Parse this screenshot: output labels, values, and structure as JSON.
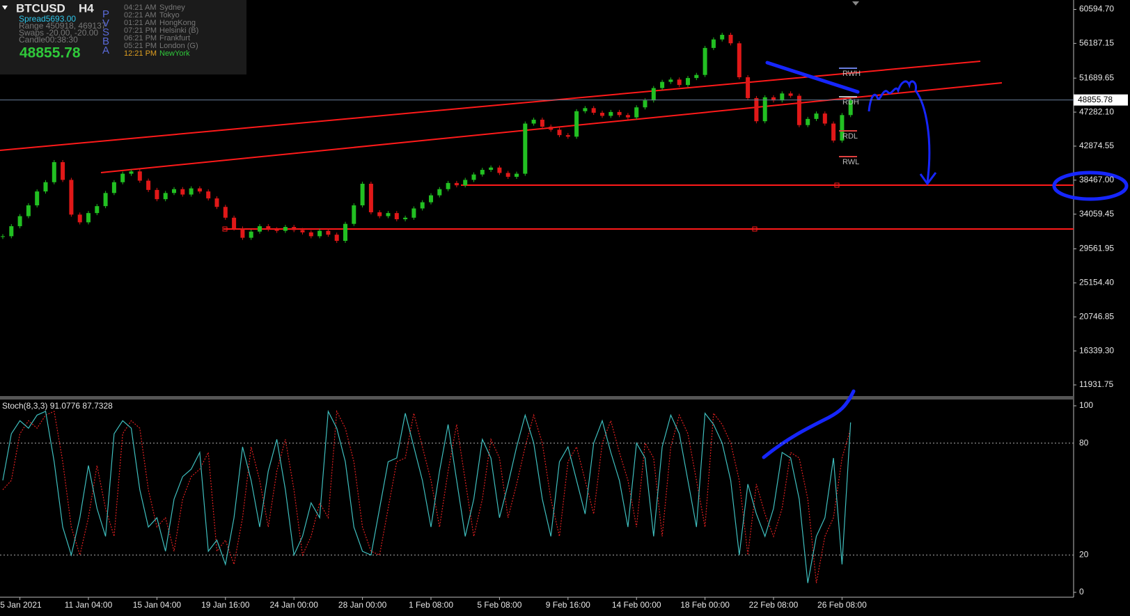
{
  "chart_data": {
    "type": "candlestick",
    "symbol": "BTCUSD",
    "timeframe": "H4",
    "info_lines": [
      "Spread5693.00",
      "Range 450918, 469137",
      "Swaps -20.00, -20.00",
      "Candle00:38:30"
    ],
    "side_letters": [
      "P",
      "V",
      "S",
      "B",
      "A"
    ],
    "clocks": [
      {
        "time": "04:21 AM",
        "city": "Sydney"
      },
      {
        "time": "02:21 AM",
        "city": "Tokyo"
      },
      {
        "time": "01:21 AM",
        "city": "HongKong"
      },
      {
        "time": "07:21 PM",
        "city": "Helsinki  (B)"
      },
      {
        "time": "06:21 PM",
        "city": "Frankfurt"
      },
      {
        "time": "05:21 PM",
        "city": "London  (G)"
      },
      {
        "time": "12:21 PM",
        "city": "NewYork"
      }
    ],
    "current_price": 48855.78,
    "pivots": [
      "RWH",
      "RDH",
      "RDL",
      "RWL"
    ],
    "up_color": "#22c022",
    "down_color": "#e01818",
    "categories": [
      null,
      null,
      "5 Jan 2021",
      null,
      null,
      null,
      null,
      null,
      null,
      null,
      "11 Jan 04:00",
      null,
      null,
      null,
      null,
      null,
      null,
      null,
      "15 Jan 04:00",
      null,
      null,
      null,
      null,
      null,
      null,
      null,
      "19 Jan 16:00",
      null,
      null,
      null,
      null,
      null,
      null,
      null,
      "24 Jan 00:00",
      null,
      null,
      null,
      null,
      null,
      null,
      null,
      "28 Jan 00:00",
      null,
      null,
      null,
      null,
      null,
      null,
      null,
      "1 Feb 08:00",
      null,
      null,
      null,
      null,
      null,
      null,
      null,
      "5 Feb 08:00",
      null,
      null,
      null,
      null,
      null,
      null,
      null,
      "9 Feb 16:00",
      null,
      null,
      null,
      null,
      null,
      null,
      null,
      "14 Feb 00:00",
      null,
      null,
      null,
      null,
      null,
      null,
      null,
      "18 Feb 00:00",
      null,
      null,
      null,
      null,
      null,
      null,
      null,
      "22 Feb 08:00",
      null,
      null,
      null,
      null,
      null,
      null,
      null,
      "26 Feb 08:00",
      null
    ],
    "close": [
      31200,
      32500,
      33800,
      35200,
      37000,
      38200,
      40800,
      38500,
      34000,
      33000,
      34200,
      35100,
      36800,
      38200,
      39300,
      39600,
      38400,
      37200,
      36000,
      36800,
      37300,
      36600,
      37400,
      37000,
      36100,
      35000,
      33600,
      32200,
      31000,
      31800,
      32500,
      32100,
      31900,
      32400,
      32000,
      31700,
      31200,
      31900,
      31400,
      30600,
      32800,
      35200,
      38000,
      34300,
      33800,
      34200,
      33400,
      33600,
      34800,
      35600,
      36500,
      37300,
      38100,
      37800,
      38500,
      39200,
      39800,
      40100,
      39400,
      38900,
      39300,
      45800,
      46300,
      45400,
      45000,
      44300,
      44100,
      47400,
      47800,
      47200,
      46800,
      47300,
      46900,
      46600,
      47900,
      48800,
      50400,
      51200,
      51500,
      50800,
      51700,
      52100,
      55600,
      56700,
      57300,
      56200,
      51800,
      49100,
      46100,
      49200,
      48800,
      49700,
      49400,
      45600,
      46400,
      47100,
      45800,
      43600,
      46900,
      48855.78
    ],
    "ylim": [
      10488,
      61812
    ],
    "yticks": [
      {
        "value": 60594.7,
        "label": "60594.70"
      },
      56187.15,
      51689.65,
      {
        "value": 47282.1,
        "label": "47282.10"
      },
      42874.55,
      {
        "value": 38467,
        "label": "38467.00"
      },
      34059.45,
      29561.95,
      {
        "value": 25154.4,
        "label": "25154.40"
      },
      20746.85,
      {
        "value": 16339.3,
        "label": "16339.30"
      },
      11931.75
    ],
    "indicator": {
      "label": "Stoch(8,3,3) 91.0776 87.7328",
      "main_color": "#3fbfbf",
      "signal_color": "#e02020",
      "main": [
        60,
        85,
        92,
        88,
        95,
        97,
        70,
        35,
        20,
        40,
        68,
        45,
        30,
        85,
        92,
        88,
        55,
        35,
        40,
        22,
        50,
        62,
        66,
        75,
        22,
        28,
        15,
        40,
        78,
        60,
        35,
        65,
        82,
        55,
        20,
        30,
        48,
        40,
        97,
        88,
        70,
        35,
        22,
        20,
        45,
        70,
        72,
        96,
        78,
        60,
        35,
        65,
        90,
        60,
        30,
        50,
        82,
        72,
        40,
        58,
        78,
        95,
        80,
        50,
        30,
        70,
        78,
        60,
        42,
        80,
        92,
        75,
        60,
        35,
        80,
        72,
        30,
        78,
        95,
        85,
        60,
        35,
        96,
        90,
        80,
        60,
        20,
        58,
        42,
        30,
        45,
        75,
        72,
        50,
        5,
        30,
        40,
        72,
        15,
        91.0776
      ],
      "signal": [
        55,
        60,
        85,
        92,
        88,
        95,
        97,
        70,
        35,
        20,
        40,
        68,
        45,
        30,
        85,
        92,
        88,
        55,
        35,
        40,
        22,
        50,
        62,
        66,
        75,
        22,
        28,
        15,
        40,
        78,
        60,
        35,
        65,
        82,
        55,
        20,
        30,
        48,
        40,
        97,
        88,
        70,
        35,
        22,
        20,
        45,
        70,
        72,
        96,
        78,
        60,
        35,
        65,
        90,
        60,
        30,
        50,
        82,
        72,
        40,
        58,
        78,
        95,
        80,
        50,
        30,
        70,
        78,
        60,
        42,
        80,
        92,
        75,
        60,
        35,
        80,
        72,
        30,
        78,
        95,
        85,
        60,
        35,
        96,
        90,
        80,
        60,
        20,
        58,
        42,
        30,
        45,
        75,
        72,
        50,
        5,
        30,
        40,
        72,
        87.7328
      ],
      "ylim": [
        0,
        100
      ],
      "yticks": [
        0,
        20,
        80,
        100
      ]
    }
  }
}
